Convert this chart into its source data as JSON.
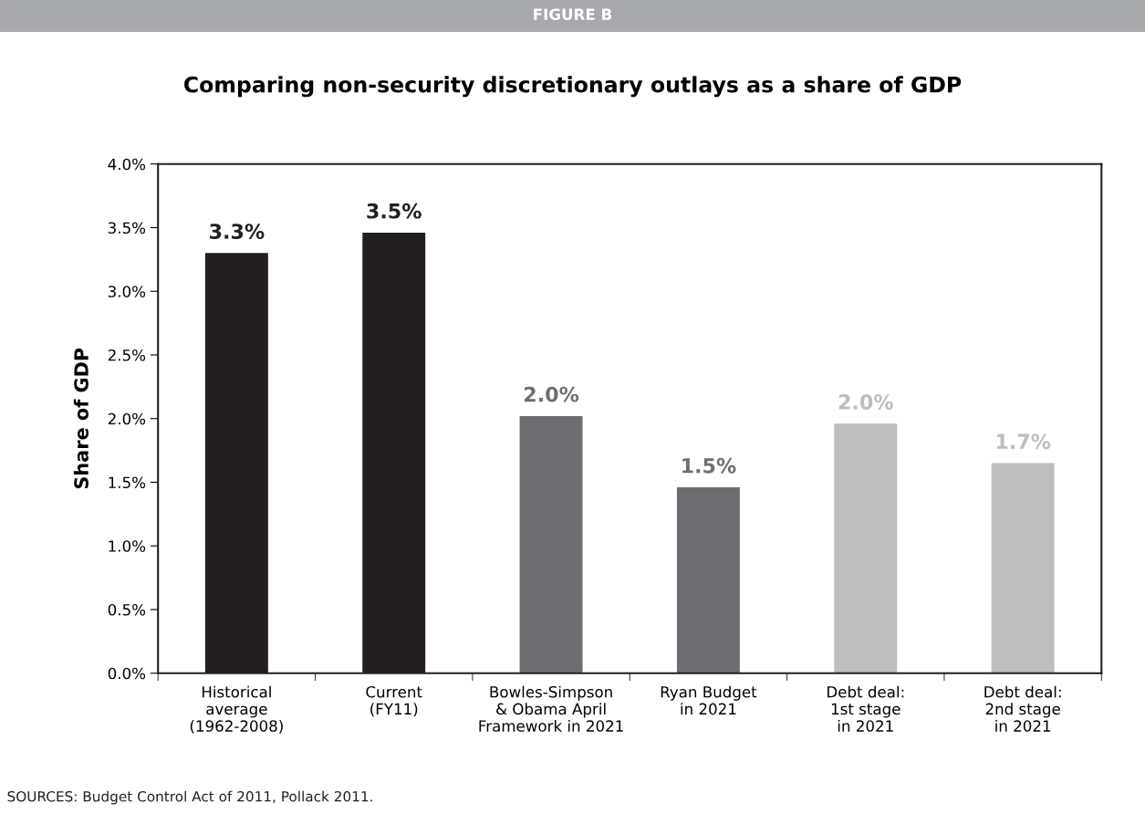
{
  "chart_data": {
    "type": "bar",
    "title": "Comparing non-security discretionary outlays as a share of GDP",
    "ylabel": "Share of GDP",
    "categories": [
      "Historical\naverage\n(1962-2008)",
      "Current\n(FY11)",
      "Bowles-Simpson\n& Obama April\nFramework in 2021",
      "Ryan Budget\nin 2021",
      "Debt deal:\n1st stage\nin 2021",
      "Debt deal:\n2nd stage\nin 2021"
    ],
    "values": [
      3.3,
      3.46,
      2.02,
      1.46,
      1.96,
      1.65
    ],
    "colors": [
      "#231f20",
      "#231f20",
      "#6d6e71",
      "#6d6e71",
      "#bcbec0",
      "#bcbec0"
    ],
    "value_labels": [
      "3.3%",
      "3.5%",
      "2.0%",
      "1.5%",
      "2.0%",
      "1.7%"
    ],
    "ylim": [
      0,
      4
    ],
    "yticks": [
      {
        "value": 0,
        "label": "0.0%"
      },
      {
        "value": 0.5,
        "label": "0.5%"
      },
      {
        "value": 1,
        "label": "1.0%"
      },
      {
        "value": 1.5,
        "label": "1.5%"
      },
      {
        "value": 2,
        "label": "2.0%"
      },
      {
        "value": 2.5,
        "label": "2.5%"
      },
      {
        "value": 3,
        "label": "3.0%"
      },
      {
        "value": 3.5,
        "label": "3.5%"
      },
      {
        "value": 4,
        "label": "4.0%"
      }
    ],
    "grid": false,
    "legend": false,
    "annotations": [
      "FIGURE B",
      "SOURCES: Budget Control Act of 2011, Pollack 2011."
    ]
  }
}
